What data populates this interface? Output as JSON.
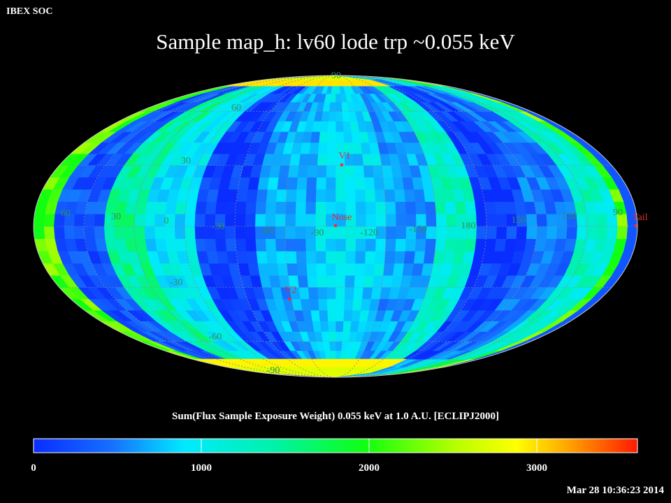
{
  "header": {
    "corner_label": "IBEX SOC",
    "title": "Sample map_h: lv60 lode trp ~0.055 keV"
  },
  "map": {
    "projection": "mollweide",
    "frame": "ECLIPJ2000",
    "lat_labels_north": [
      "90",
      "60",
      "30"
    ],
    "lat_labels_south": [
      "-30",
      "-60",
      "-90"
    ],
    "lon_labels": [
      "60",
      "30",
      "0",
      "-30",
      "-60",
      "-90",
      "-120",
      "-150",
      "180",
      "150",
      "120",
      "90"
    ],
    "grid_color": "#8a8a8a",
    "label_color": "#2f8f52",
    "marker_color": "#ff2a2a",
    "label_marker_color": "#e03030",
    "markers": [
      {
        "label": "V1",
        "lon": -91,
        "lat": 34
      },
      {
        "label": "Nose",
        "lon": -105,
        "lat": 0
      },
      {
        "label": "V2",
        "lon": -72,
        "lat": -31
      },
      {
        "label": "Tail",
        "lon": 75,
        "lat": 0
      }
    ],
    "bands": [
      {
        "center_lon": 90,
        "level": 2200
      },
      {
        "center_lon": 65,
        "level": 300
      },
      {
        "center_lon": 35,
        "level": 1500
      },
      {
        "center_lon": 10,
        "level": 1050
      },
      {
        "center_lon": -25,
        "level": 150
      },
      {
        "center_lon": -60,
        "level": 750
      },
      {
        "center_lon": -100,
        "level": 950
      },
      {
        "center_lon": -135,
        "level": 700
      },
      {
        "center_lon": -160,
        "level": 1300
      },
      {
        "center_lon": 170,
        "level": 150
      },
      {
        "center_lon": 140,
        "level": 500
      },
      {
        "center_lon": 110,
        "level": 1300
      }
    ]
  },
  "colorbar": {
    "title": "Sum(Flux Sample Exposure Weight)  0.055 keV at 1.0 A.U. [ECLIPJ2000]",
    "min": 0,
    "max": 3600,
    "ticks": [
      "0",
      "1000",
      "2000",
      "3000"
    ]
  },
  "footer": {
    "timestamp": "Mar 28 10:36:23 2014"
  }
}
